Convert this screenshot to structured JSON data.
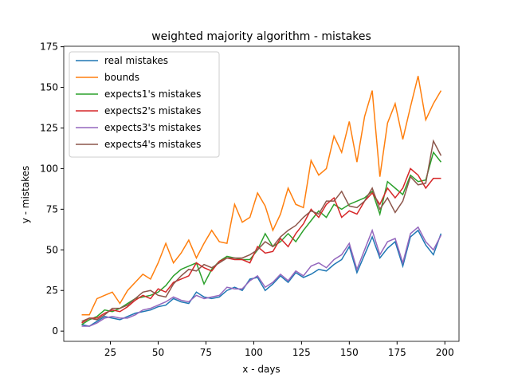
{
  "chart_data": {
    "type": "line",
    "title": "weighted majority algorithm - mistakes",
    "x_label": "x - days",
    "y_label": "y - mistakes",
    "x": [
      10,
      14,
      18,
      22,
      26,
      30,
      34,
      38,
      42,
      46,
      50,
      54,
      58,
      62,
      66,
      70,
      74,
      78,
      82,
      86,
      90,
      94,
      98,
      102,
      106,
      110,
      114,
      118,
      122,
      126,
      130,
      134,
      138,
      142,
      146,
      150,
      154,
      158,
      162,
      166,
      170,
      174,
      178,
      182,
      186,
      190,
      194,
      198
    ],
    "series": [
      {
        "name": "real mistakes",
        "color": "#1f77b4",
        "values": [
          4,
          3,
          6,
          9,
          8,
          7,
          9,
          11,
          12,
          13,
          15,
          16,
          20,
          18,
          17,
          24,
          21,
          20,
          21,
          25,
          27,
          25,
          32,
          33,
          25,
          29,
          34,
          30,
          36,
          33,
          35,
          38,
          37,
          41,
          44,
          52,
          36,
          47,
          58,
          45,
          51,
          55,
          40,
          58,
          62,
          53,
          47,
          60
        ]
      },
      {
        "name": "bounds",
        "color": "#ff7f0e",
        "values": [
          10,
          10,
          20,
          22,
          24,
          17,
          25,
          30,
          35,
          32,
          42,
          54,
          42,
          48,
          56,
          45,
          54,
          62,
          55,
          54,
          78,
          67,
          70,
          85,
          77,
          62,
          72,
          88,
          78,
          76,
          105,
          96,
          100,
          120,
          110,
          129,
          104,
          132,
          148,
          95,
          128,
          140,
          118,
          138,
          157,
          130,
          140,
          148
        ]
      },
      {
        "name": "expects1's mistakes",
        "color": "#2ca02c",
        "values": [
          4,
          7,
          9,
          13,
          12,
          14,
          17,
          20,
          21,
          22,
          24,
          28,
          34,
          38,
          40,
          42,
          29,
          38,
          43,
          46,
          45,
          44,
          44,
          50,
          60,
          52,
          55,
          60,
          55,
          62,
          68,
          74,
          70,
          78,
          75,
          78,
          80,
          82,
          86,
          72,
          92,
          88,
          84,
          96,
          92,
          93,
          110,
          104
        ]
      },
      {
        "name": "expects2's mistakes",
        "color": "#d62728",
        "values": [
          5,
          8,
          8,
          11,
          13,
          12,
          15,
          19,
          22,
          20,
          26,
          24,
          30,
          32,
          34,
          42,
          39,
          37,
          43,
          45,
          44,
          44,
          42,
          52,
          48,
          49,
          57,
          52,
          60,
          66,
          75,
          70,
          78,
          82,
          70,
          74,
          72,
          80,
          85,
          78,
          88,
          82,
          88,
          100,
          96,
          88,
          94,
          94
        ]
      },
      {
        "name": "expects3's mistakes",
        "color": "#9467bd",
        "values": [
          3,
          3,
          5,
          8,
          9,
          8,
          8,
          10,
          13,
          14,
          16,
          18,
          21,
          19,
          18,
          22,
          20,
          21,
          22,
          27,
          26,
          26,
          31,
          34,
          27,
          30,
          35,
          31,
          37,
          34,
          40,
          42,
          39,
          44,
          47,
          54,
          38,
          50,
          62,
          47,
          55,
          57,
          42,
          60,
          64,
          55,
          50,
          59
        ]
      },
      {
        "name": "expects4's mistakes",
        "color": "#8c564b",
        "values": [
          6,
          8,
          7,
          10,
          14,
          14,
          16,
          20,
          24,
          25,
          22,
          21,
          29,
          34,
          38,
          37,
          41,
          39,
          42,
          45,
          45,
          45,
          47,
          50,
          55,
          52,
          58,
          62,
          65,
          70,
          74,
          72,
          80,
          80,
          86,
          77,
          76,
          80,
          88,
          75,
          82,
          73,
          80,
          95,
          90,
          91,
          117,
          108
        ]
      }
    ],
    "xlim": [
      0.6,
      207.4
    ],
    "ylim": [
      -6.3,
      175.3
    ],
    "xticks": [
      25,
      50,
      75,
      100,
      125,
      150,
      175,
      200
    ],
    "yticks": [
      0,
      25,
      50,
      75,
      100,
      125,
      150,
      175
    ],
    "legend": "upper left"
  }
}
